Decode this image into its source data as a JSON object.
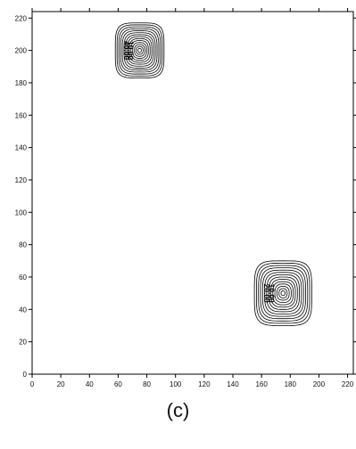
{
  "caption": "(c)",
  "chart_data": {
    "type": "contour",
    "title": "",
    "xlabel": "",
    "ylabel": "",
    "xlim": [
      0,
      224
    ],
    "ylim": [
      0,
      224
    ],
    "x_ticks": [
      0,
      20,
      40,
      60,
      80,
      100,
      120,
      140,
      160,
      180,
      200,
      220
    ],
    "y_ticks": [
      0,
      20,
      40,
      60,
      80,
      100,
      120,
      140,
      160,
      180,
      200,
      220
    ],
    "grid": false,
    "line_color": "#000000",
    "peaks": [
      {
        "center": [
          75,
          200
        ],
        "outer_extent_x": [
          58,
          92
        ],
        "outer_extent_y": [
          183,
          217
        ],
        "contour_count": 14,
        "contour_labels": [
          "40.00",
          "10.00"
        ]
      },
      {
        "center": [
          175,
          50
        ],
        "outer_extent_x": [
          155,
          195
        ],
        "outer_extent_y": [
          30,
          70
        ],
        "contour_count": 14,
        "contour_labels": [
          "20.00",
          "10.00"
        ]
      }
    ]
  }
}
